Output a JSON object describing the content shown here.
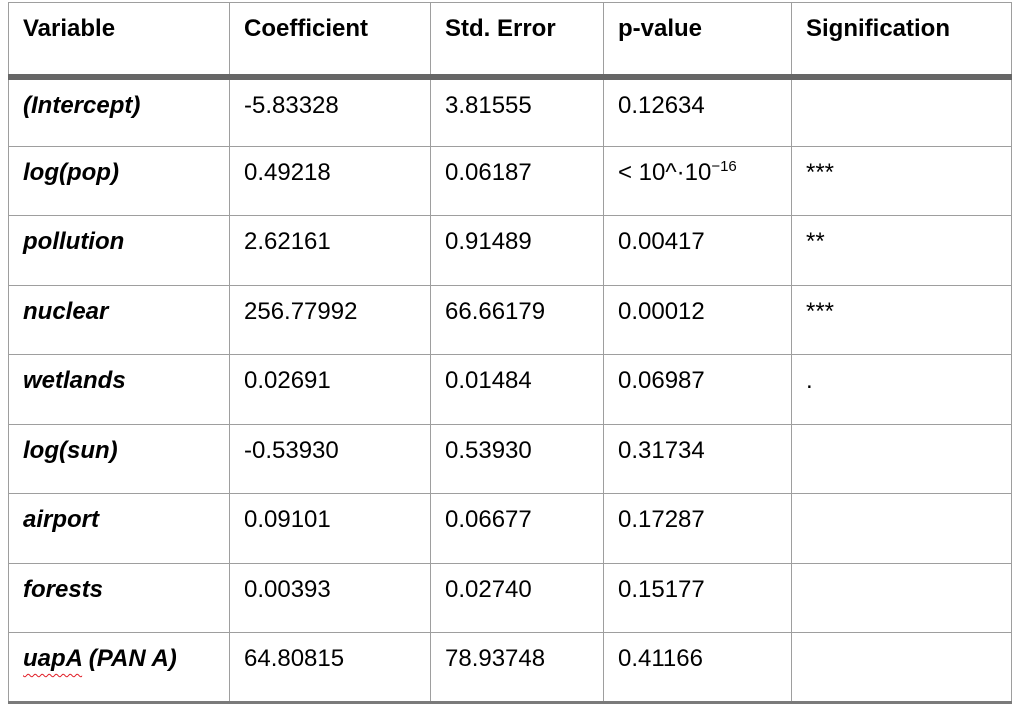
{
  "colors": {
    "border_thin": "#9e9e9e",
    "header_separator": "#666666",
    "table_bottom_border": "#7a7a7a",
    "spellcheck_squiggle": "#e01b24",
    "text": "#000000",
    "background": "#ffffff"
  },
  "table": {
    "headers": [
      "Variable",
      "Coefficient",
      "Std. Error",
      "p-value",
      "Signification"
    ],
    "rows": [
      {
        "variable": "(Intercept)",
        "coefficient": "-5.83328",
        "std_error": "3.81555",
        "p_value": "0.12634",
        "signification": ""
      },
      {
        "variable": "log(pop)",
        "coefficient": "0.49218",
        "std_error": "0.06187",
        "p_value": "< 10^·10",
        "p_value_sup": "−16",
        "signification": "***"
      },
      {
        "variable": "pollution",
        "coefficient": "2.62161",
        "std_error": "0.91489",
        "p_value": "0.00417",
        "signification": "**"
      },
      {
        "variable": "nuclear",
        "coefficient": "256.77992",
        "std_error": "66.66179",
        "p_value": "0.00012",
        "signification": "***"
      },
      {
        "variable": "wetlands",
        "coefficient": "0.02691",
        "std_error": "0.01484",
        "p_value": "0.06987",
        "signification": "."
      },
      {
        "variable": "log(sun)",
        "coefficient": "-0.53930",
        "std_error": "0.53930",
        "p_value": "0.31734",
        "signification": ""
      },
      {
        "variable": "airport",
        "coefficient": "0.09101",
        "std_error": "0.06677",
        "p_value": "0.17287",
        "signification": ""
      },
      {
        "variable": "forests",
        "coefficient": "0.00393",
        "std_error": "0.02740",
        "p_value": "0.15177",
        "signification": ""
      },
      {
        "variable": "uapA (PAN A)",
        "misspelled": "uapA",
        "coefficient": "64.80815",
        "std_error": "78.93748",
        "p_value": "0.41166",
        "signification": ""
      }
    ]
  }
}
